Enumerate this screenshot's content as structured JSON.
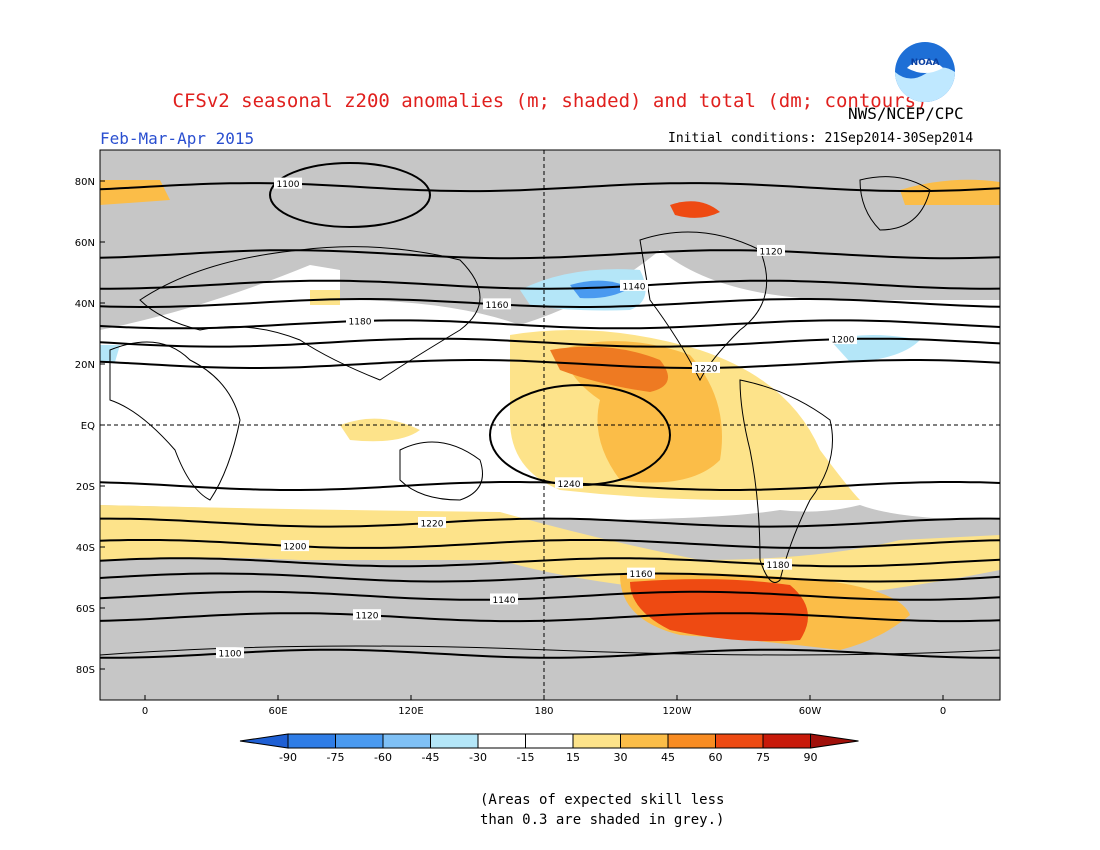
{
  "header": {
    "title": "CFSv2 seasonal z200 anomalies (m; shaded) and total (dm; contours)",
    "period": "Feb-Mar-Apr 2015",
    "initial_conditions": "Initial conditions: 21Sep2014-30Sep2014",
    "agency": "NWS/NCEP/CPC",
    "logo_text": "NOAA"
  },
  "map": {
    "lat_labels": [
      "80N",
      "60N",
      "40N",
      "20N",
      "EQ",
      "20S",
      "40S",
      "60S",
      "80S"
    ],
    "lon_labels": [
      "0",
      "60E",
      "120E",
      "180",
      "120W",
      "60W",
      "0"
    ],
    "contours": [
      {
        "label": "1100",
        "lat": -75
      },
      {
        "label": "1120",
        "lat": -63
      },
      {
        "label": "1140",
        "lat": -56
      },
      {
        "label": "1160",
        "lat": -50
      },
      {
        "label": "1180",
        "lat": -45
      },
      {
        "label": "1200",
        "lat": -39
      },
      {
        "label": "1220",
        "lat": -32
      },
      {
        "label": "1240",
        "lat": -20
      },
      {
        "label": "1220",
        "lat": 20
      },
      {
        "label": "1200",
        "lat": 27
      },
      {
        "label": "1180",
        "lat": 33
      },
      {
        "label": "1160",
        "lat": 40
      },
      {
        "label": "1140",
        "lat": 46
      },
      {
        "label": "1120",
        "lat": 56
      },
      {
        "label": "1100",
        "lat": 78
      }
    ]
  },
  "colorbar": {
    "levels": [
      "-90",
      "-75",
      "-60",
      "-45",
      "-30",
      "-15",
      "15",
      "30",
      "45",
      "60",
      "75",
      "90"
    ],
    "colors": [
      "#1e5fd4",
      "#2f7de6",
      "#4a9af0",
      "#7fc0f5",
      "#b4e6f8",
      "#ffffff",
      "#ffffff",
      "#fde38a",
      "#fbbd48",
      "#f88c22",
      "#ee4a12",
      "#c81a0a",
      "#a0100a"
    ]
  },
  "footer": {
    "note_line1": "(Areas of expected skill less",
    "note_line2": "than 0.3 are shaded in grey.)"
  }
}
